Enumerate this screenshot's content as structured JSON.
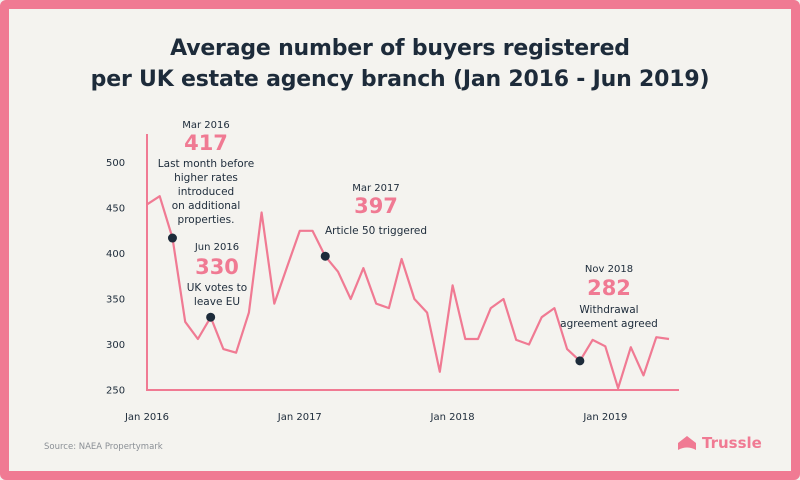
{
  "title_line1": "Average number of buyers registered",
  "title_line2": "per UK estate agency branch (Jan 2016 - Jun 2019)",
  "source": "Source: NAEA Propertymark",
  "brand": "Trussle",
  "colors": {
    "line": "#f07a93",
    "axis": "#f07a93",
    "marker": "#1d2b3a",
    "text": "#1d2b3a",
    "accent": "#f07a93"
  },
  "chart_data": {
    "type": "line",
    "title": "Average number of buyers registered per UK estate agency branch (Jan 2016 - Jun 2019)",
    "xlabel": "",
    "ylabel": "",
    "ylim": [
      250,
      530
    ],
    "yticks": [
      250,
      300,
      350,
      400,
      450,
      500
    ],
    "x_tick_labels": [
      "Jan 2016",
      "Jan 2017",
      "Jan 2018",
      "Jan 2019"
    ],
    "x_tick_index": [
      0,
      12,
      24,
      36
    ],
    "grid": false,
    "legend": "none",
    "x": [
      "Jan 2016",
      "Feb 2016",
      "Mar 2016",
      "Apr 2016",
      "May 2016",
      "Jun 2016",
      "Jul 2016",
      "Aug 2016",
      "Sep 2016",
      "Oct 2016",
      "Nov 2016",
      "Dec 2016",
      "Jan 2017",
      "Feb 2017",
      "Mar 2017",
      "Apr 2017",
      "May 2017",
      "Jun 2017",
      "Jul 2017",
      "Aug 2017",
      "Sep 2017",
      "Oct 2017",
      "Nov 2017",
      "Dec 2017",
      "Jan 2018",
      "Feb 2018",
      "Mar 2018",
      "Apr 2018",
      "May 2018",
      "Jun 2018",
      "Jul 2018",
      "Aug 2018",
      "Sep 2018",
      "Oct 2018",
      "Nov 2018",
      "Dec 2018",
      "Jan 2019",
      "Feb 2019",
      "Mar 2019",
      "Apr 2019",
      "May 2019",
      "Jun 2019"
    ],
    "values": [
      454,
      463,
      417,
      325,
      306,
      330,
      295,
      291,
      335,
      445,
      345,
      385,
      425,
      425,
      397,
      380,
      350,
      384,
      345,
      340,
      394,
      350,
      335,
      270,
      365,
      306,
      306,
      340,
      350,
      305,
      300,
      330,
      340,
      295,
      282,
      305,
      298,
      252,
      297,
      266,
      308,
      306
    ],
    "annotations": [
      {
        "index": 2,
        "date": "Mar 2016",
        "value": "417",
        "text": [
          "Last month before",
          "higher rates",
          "introduced",
          "on additional",
          "properties."
        ]
      },
      {
        "index": 5,
        "date": "Jun 2016",
        "value": "330",
        "text": [
          "UK votes to",
          "leave EU"
        ]
      },
      {
        "index": 14,
        "date": "Mar 2017",
        "value": "397",
        "text": [
          "Article 50 triggered"
        ]
      },
      {
        "index": 34,
        "date": "Nov 2018",
        "value": "282",
        "text": [
          "Withdrawal",
          "agreement agreed"
        ]
      }
    ]
  }
}
